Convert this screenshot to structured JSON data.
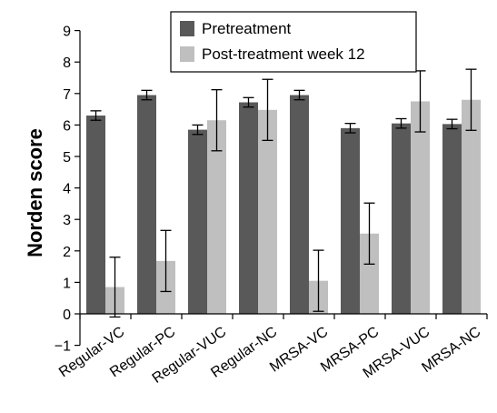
{
  "chart_data": {
    "type": "bar",
    "categories": [
      "Regular-VC",
      "Regular-PC",
      "Regular-VUC",
      "Regular-NC",
      "MRSA-VC",
      "MRSA-PC",
      "MRSA-VUC",
      "MRSA-NC"
    ],
    "series": [
      {
        "name": "Pretreatment",
        "color": "#595959",
        "values": [
          6.3,
          6.95,
          5.85,
          6.72,
          6.95,
          5.9,
          6.05,
          6.03
        ],
        "error": [
          0.15,
          0.15,
          0.15,
          0.15,
          0.15,
          0.15,
          0.15,
          0.15
        ]
      },
      {
        "name": "Post-treatment week 12",
        "color": "#bfbfbf",
        "values": [
          0.85,
          1.68,
          6.15,
          6.48,
          1.05,
          2.55,
          6.75,
          6.8
        ],
        "error": [
          0.95,
          0.97,
          0.97,
          0.97,
          0.97,
          0.97,
          0.97,
          0.97
        ]
      }
    ],
    "title": "",
    "xlabel": "",
    "ylabel": "Norden score",
    "ylim": [
      -1,
      9
    ],
    "yticks": [
      -1,
      0,
      1,
      2,
      3,
      4,
      5,
      6,
      7,
      8,
      9
    ],
    "grid": false,
    "legend_position": "top-center"
  }
}
